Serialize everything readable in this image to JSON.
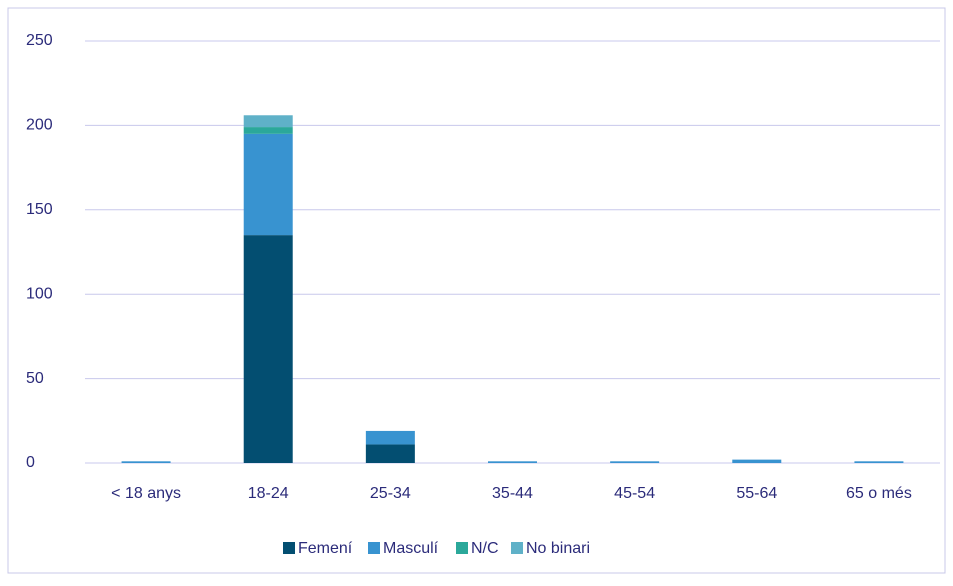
{
  "chart_data": {
    "type": "stacked_bar",
    "categories": [
      "< 18 anys",
      "18-24",
      "25-34",
      "35-44",
      "45-54",
      "55-64",
      "65 o més"
    ],
    "series": [
      {
        "name": "Femení",
        "color": "#034e71",
        "values": [
          0,
          135,
          11,
          0,
          0,
          0,
          0
        ]
      },
      {
        "name": "Masculí",
        "color": "#3893d0",
        "values": [
          1,
          60,
          8,
          1,
          1,
          2,
          1
        ]
      },
      {
        "name": "N/C",
        "color": "#2ba89a",
        "values": [
          0,
          4,
          0,
          0,
          0,
          0,
          0
        ]
      },
      {
        "name": "No binari",
        "color": "#5fb1c8",
        "values": [
          0,
          7,
          0,
          0,
          0,
          0,
          0
        ]
      }
    ],
    "ylim": [
      0,
      250
    ],
    "yticks": [
      0,
      50,
      100,
      150,
      200,
      250
    ],
    "grid": true,
    "legend": "bottom"
  }
}
